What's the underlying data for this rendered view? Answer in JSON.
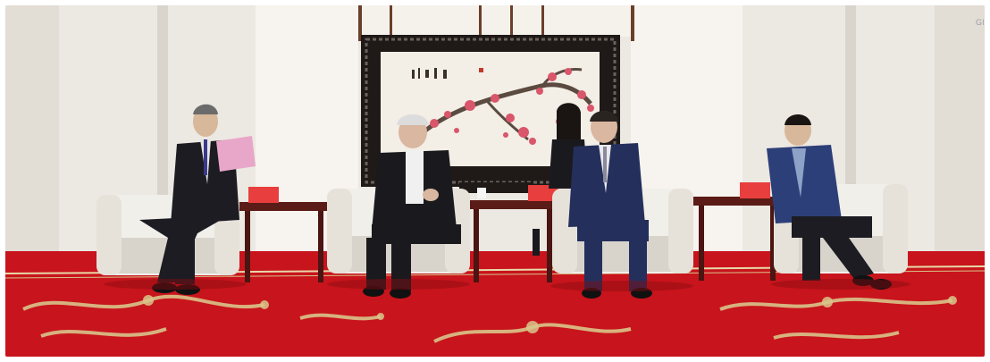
{
  "scene": {
    "corner_mark": "Gl",
    "colors": {
      "wall": "#ece8e2",
      "wall_shadow": "#d9d4cc",
      "carpet": "#c8141c",
      "carpet_dark": "#a90f17",
      "carpet_pattern": "#d9c48a",
      "armchair": "#f1efea",
      "armchair_shadow": "#d8d4cc",
      "table_wood": "#5b1b16",
      "screen_frame": "#1f1a18",
      "painting_bg": "#f3eee6",
      "blossom": "#d9566b",
      "suit_dark": "#1c1c22",
      "suit_navy": "#242f5c",
      "suit_blue": "#2d3f78",
      "name_card": "#e83e3e"
    }
  }
}
